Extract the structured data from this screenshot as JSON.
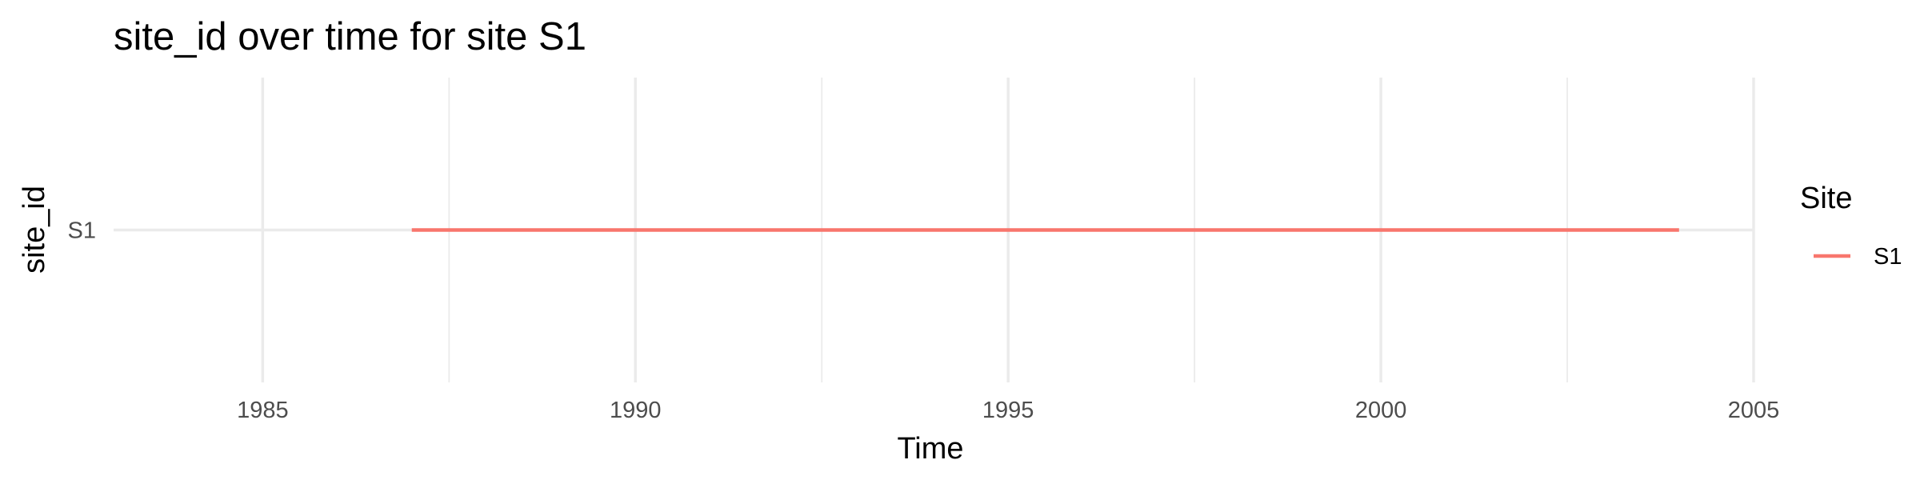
{
  "chart_data": {
    "type": "line",
    "title": "site_id over time for site S1",
    "xlabel": "Time",
    "ylabel": "site_id",
    "xlim": [
      1983,
      2005
    ],
    "x_ticks": [
      "1985",
      "1990",
      "1995",
      "2000",
      "2005"
    ],
    "y_categories": [
      "S1"
    ],
    "series": [
      {
        "name": "S1",
        "color": "#f8766d",
        "x": [
          1987,
          2004
        ],
        "y": [
          "S1",
          "S1"
        ]
      }
    ],
    "legend": {
      "title": "Site",
      "placement": "right"
    },
    "grid": true
  }
}
